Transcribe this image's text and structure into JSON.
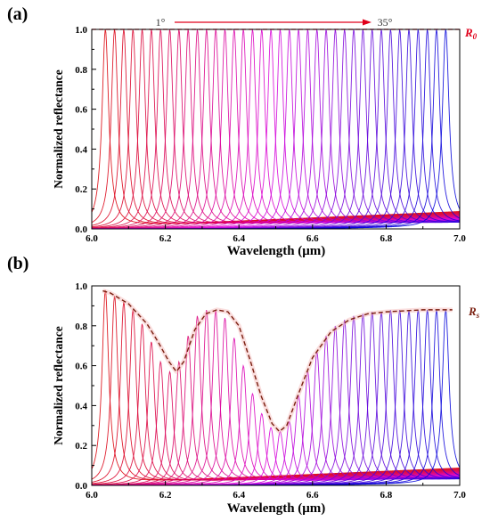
{
  "chart_data": [
    {
      "panel": "(a)",
      "type": "line",
      "xlabel": "Wavelength (μm)",
      "ylabel": "Normalized reflectance",
      "xlim": [
        6.0,
        7.0
      ],
      "ylim": [
        0,
        1.0
      ],
      "x_ticks": [
        "6.0",
        "6.2",
        "6.4",
        "6.6",
        "6.8",
        "7.0"
      ],
      "y_ticks": [
        "0.0",
        "0.2",
        "0.4",
        "0.6",
        "0.8",
        "1.0"
      ],
      "angle_start": "1°",
      "angle_end": "35°",
      "reference_label": "R",
      "reference_subscript": "0",
      "reference_value": 1.0,
      "reference_color": "#e0001b",
      "resonance_width": 0.011,
      "resonance_centers": [
        6.037,
        6.062,
        6.087,
        6.112,
        6.137,
        6.162,
        6.187,
        6.212,
        6.237,
        6.262,
        6.287,
        6.312,
        6.337,
        6.362,
        6.387,
        6.412,
        6.437,
        6.462,
        6.487,
        6.512,
        6.537,
        6.562,
        6.587,
        6.612,
        6.637,
        6.662,
        6.687,
        6.712,
        6.737,
        6.762,
        6.787,
        6.812,
        6.837,
        6.862,
        6.887,
        6.912,
        6.937,
        6.962
      ],
      "resonance_peaks": [
        1.0,
        1.0,
        1.0,
        1.0,
        1.0,
        1.0,
        1.0,
        1.0,
        1.0,
        1.0,
        1.0,
        1.0,
        1.0,
        1.0,
        1.0,
        1.0,
        1.0,
        1.0,
        1.0,
        1.0,
        1.0,
        1.0,
        1.0,
        1.0,
        1.0,
        1.0,
        1.0,
        1.0,
        1.0,
        1.0,
        1.0,
        1.0,
        1.0,
        1.0,
        1.0,
        1.0,
        1.0,
        1.0
      ]
    },
    {
      "panel": "(b)",
      "type": "line",
      "xlabel": "Wavelength (μm)",
      "ylabel": "Normalized reflectance",
      "xlim": [
        6.0,
        7.0
      ],
      "ylim": [
        0,
        1.0
      ],
      "x_ticks": [
        "6.0",
        "6.2",
        "6.4",
        "6.6",
        "6.8",
        "7.0"
      ],
      "y_ticks": [
        "0.0",
        "0.2",
        "0.4",
        "0.6",
        "0.8",
        "1.0"
      ],
      "reference_label": "R",
      "reference_subscript": "s",
      "reference_color": "#7a1f10",
      "resonance_width": 0.011,
      "resonance_centers": [
        6.037,
        6.062,
        6.087,
        6.112,
        6.137,
        6.162,
        6.187,
        6.212,
        6.237,
        6.262,
        6.287,
        6.312,
        6.337,
        6.362,
        6.387,
        6.412,
        6.437,
        6.462,
        6.487,
        6.512,
        6.537,
        6.562,
        6.587,
        6.612,
        6.637,
        6.662,
        6.687,
        6.712,
        6.737,
        6.762,
        6.787,
        6.812,
        6.837,
        6.862,
        6.887,
        6.912,
        6.937,
        6.962
      ],
      "resonance_peaks": [
        0.98,
        0.95,
        0.92,
        0.88,
        0.81,
        0.72,
        0.62,
        0.57,
        0.62,
        0.75,
        0.85,
        0.88,
        0.88,
        0.84,
        0.74,
        0.6,
        0.46,
        0.36,
        0.29,
        0.27,
        0.32,
        0.45,
        0.57,
        0.67,
        0.75,
        0.8,
        0.83,
        0.85,
        0.86,
        0.87,
        0.87,
        0.88,
        0.88,
        0.88,
        0.88,
        0.88,
        0.88,
        0.88
      ],
      "envelope": {
        "x": [
          6.03,
          6.05,
          6.1,
          6.15,
          6.18,
          6.21,
          6.23,
          6.25,
          6.28,
          6.31,
          6.34,
          6.37,
          6.4,
          6.43,
          6.46,
          6.49,
          6.51,
          6.53,
          6.56,
          6.6,
          6.65,
          6.7,
          6.75,
          6.8,
          6.85,
          6.9,
          6.95,
          6.98
        ],
        "y": [
          0.975,
          0.965,
          0.91,
          0.81,
          0.72,
          0.62,
          0.57,
          0.62,
          0.78,
          0.86,
          0.88,
          0.87,
          0.8,
          0.63,
          0.45,
          0.31,
          0.27,
          0.3,
          0.45,
          0.64,
          0.77,
          0.83,
          0.86,
          0.87,
          0.875,
          0.88,
          0.88,
          0.88
        ]
      }
    }
  ]
}
